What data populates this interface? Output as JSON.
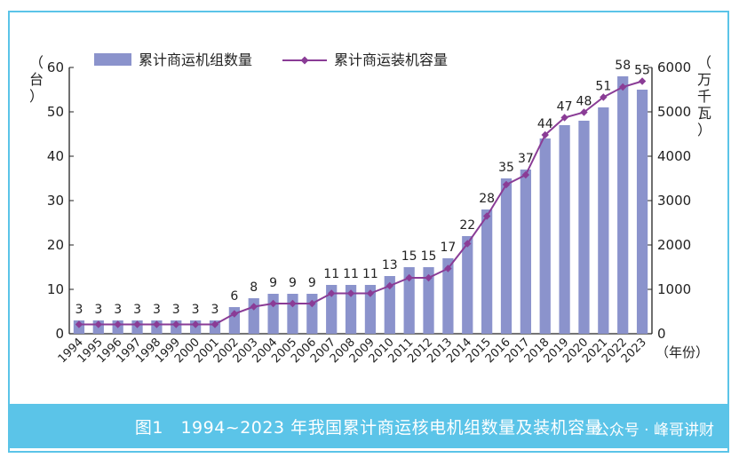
{
  "caption": "图1　1994~2023 年我国累计商运核电机组数量及装机容量",
  "watermark": "公众号 · 峰哥讲财",
  "chart_data": {
    "type": "bar",
    "categories": [
      "1994",
      "1995",
      "1996",
      "1997",
      "1998",
      "1999",
      "2000",
      "2001",
      "2002",
      "2003",
      "2004",
      "2005",
      "2006",
      "2007",
      "2008",
      "2009",
      "2010",
      "2011",
      "2012",
      "2013",
      "2014",
      "2015",
      "2016",
      "2017",
      "2018",
      "2019",
      "2020",
      "2021",
      "2022",
      "2023"
    ],
    "series": [
      {
        "name": "累计商运机组数量",
        "type": "bar",
        "axis": "left",
        "color": "#8b93cc",
        "values": [
          3,
          3,
          3,
          3,
          3,
          3,
          3,
          3,
          6,
          8,
          9,
          9,
          9,
          11,
          11,
          11,
          13,
          15,
          15,
          17,
          22,
          28,
          35,
          37,
          44,
          47,
          48,
          51,
          58,
          55
        ]
      },
      {
        "name": "累计商运装机容量",
        "type": "line",
        "axis": "right",
        "color": "#8a3c96",
        "values": [
          210,
          210,
          210,
          210,
          210,
          210,
          210,
          210,
          450,
          610,
          680,
          680,
          680,
          910,
          910,
          910,
          1080,
          1260,
          1260,
          1470,
          2030,
          2650,
          3360,
          3580,
          4480,
          4870,
          4990,
          5330,
          5560,
          5690
        ]
      }
    ],
    "y_left": {
      "label": "（台）",
      "ylim": [
        0,
        60
      ],
      "ticks": [
        0,
        10,
        20,
        30,
        40,
        50,
        60
      ]
    },
    "y_right": {
      "label": "（万千瓦）",
      "ylim": [
        0,
        6000
      ],
      "ticks": [
        0,
        1000,
        2000,
        3000,
        4000,
        5000,
        6000
      ]
    },
    "xlabel": "（年份）",
    "legend": "top-left",
    "grid": false
  }
}
